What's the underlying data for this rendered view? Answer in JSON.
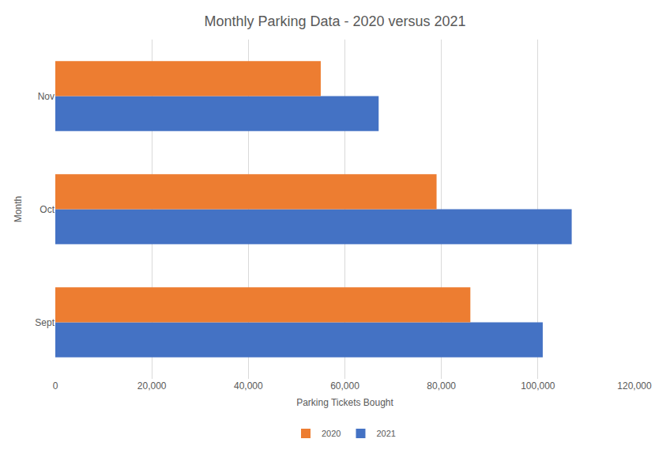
{
  "chart_data": {
    "type": "bar",
    "orientation": "horizontal",
    "title": "Monthly Parking Data - 2020 versus 2021",
    "x_label": "Parking Tickets Bought",
    "y_label": "Month",
    "categories": [
      "Sept",
      "Oct",
      "Nov"
    ],
    "series": [
      {
        "name": "2020",
        "color": "#ed7d31",
        "values": [
          86000,
          79000,
          55000
        ]
      },
      {
        "name": "2021",
        "color": "#4472c4",
        "values": [
          101000,
          107000,
          67000
        ]
      }
    ],
    "xlim": [
      0,
      120000
    ],
    "xticks": [
      0,
      {
        "value": 20000,
        "label": "20,000"
      },
      {
        "value": 40000,
        "label": "40,000"
      },
      {
        "value": 60000,
        "label": "60,000"
      },
      {
        "value": 80000,
        "label": "80,000"
      },
      {
        "value": 100000,
        "label": "100,000"
      },
      {
        "value": 120000,
        "label": "120,000"
      }
    ],
    "grid": true,
    "legend": "bottom"
  }
}
